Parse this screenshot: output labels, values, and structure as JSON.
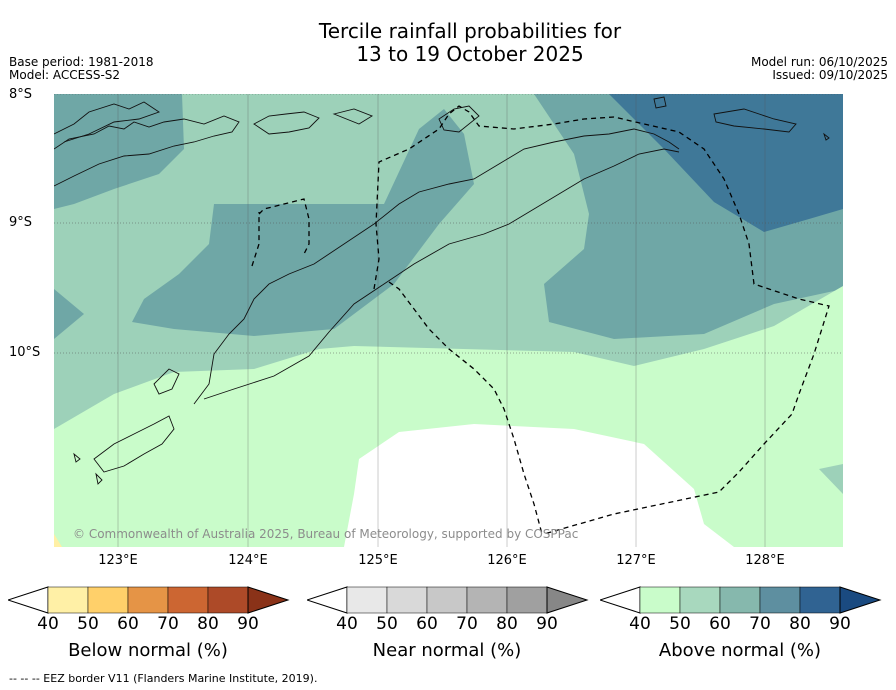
{
  "title_line1": "Tercile rainfall probabilities for",
  "title_line2": "13 to 19 October 2025",
  "base_period": "Base period: 1981-2018",
  "model": "Model: ACCESS-S2",
  "model_run": "Model run: 06/10/2025",
  "issued": "Issued: 09/10/2025",
  "latitudes": [
    "8°S",
    "9°S",
    "10°S"
  ],
  "longitudes": [
    "123°E",
    "124°E",
    "125°E",
    "126°E",
    "127°E",
    "128°E"
  ],
  "copyright": "© Commonwealth of Australia 2025, Bureau of Meteorology, supported by COSPPac",
  "colorbars": [
    {
      "label": "Below normal (%)",
      "ticks": [
        "40",
        "50",
        "60",
        "70",
        "80",
        "90"
      ],
      "colors": [
        "#fff0a6",
        "#ffd06a",
        "#e59446",
        "#cc6632",
        "#ad4a28"
      ],
      "extend_color": "#8a3218"
    },
    {
      "label": "Near normal (%)",
      "ticks": [
        "40",
        "50",
        "60",
        "70",
        "80",
        "90"
      ],
      "colors": [
        "#e8e8e8",
        "#d9d9d9",
        "#c8c8c8",
        "#b4b4b4",
        "#a0a0a0"
      ],
      "extend_color": "#878787"
    },
    {
      "label": "Above normal (%)",
      "ticks": [
        "40",
        "50",
        "60",
        "70",
        "80",
        "90"
      ],
      "colors": [
        "#c9fcca",
        "#a8d8be",
        "#86b8ad",
        "#5e8fa0",
        "#306392"
      ],
      "extend_color": "#1a4a80"
    }
  ],
  "footnote": "--  --  -- EEZ border V11 (Flanders Marine Institute, 2019)."
}
